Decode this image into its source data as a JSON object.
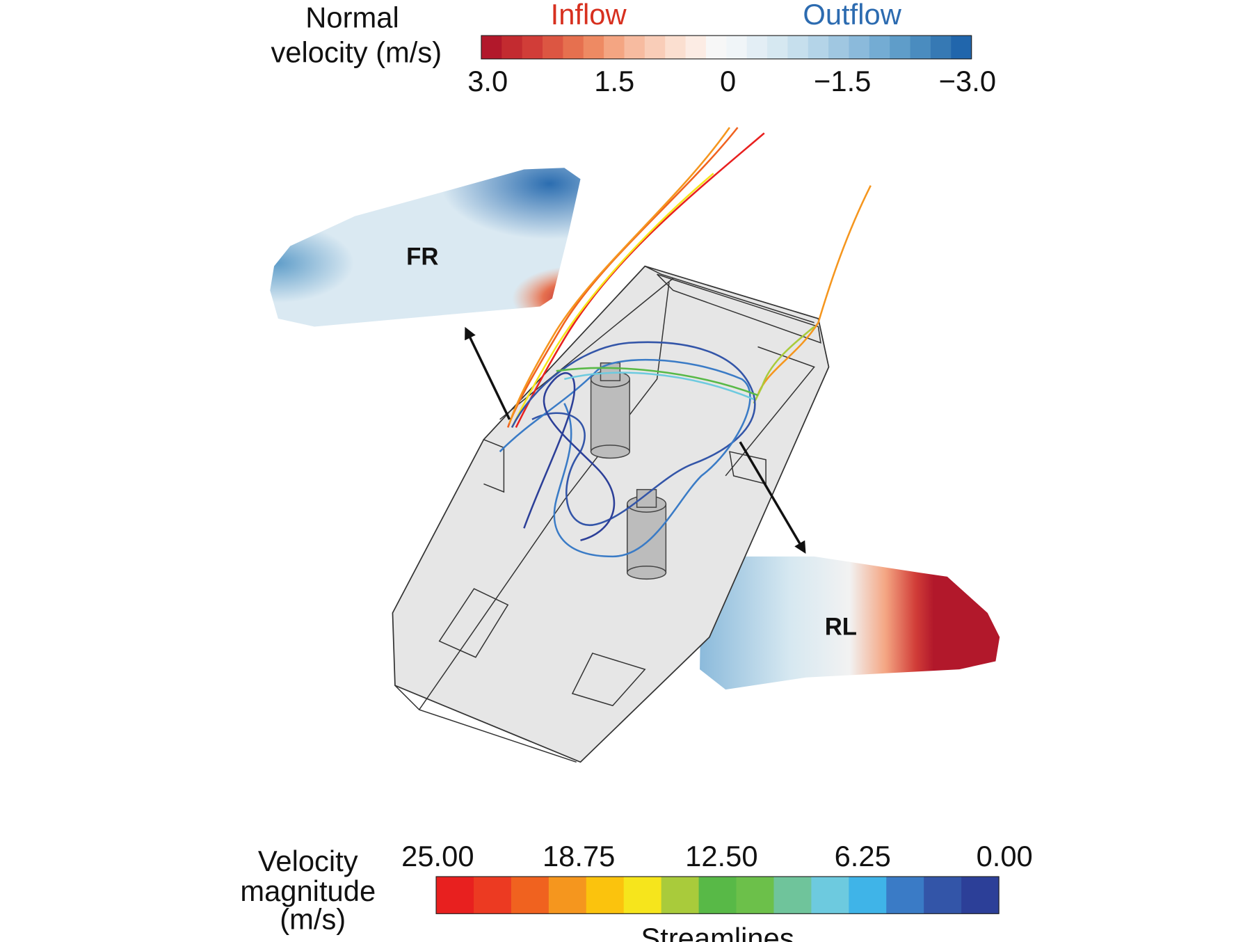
{
  "normal_velocity_legend": {
    "title_lines": [
      "Normal",
      "velocity (m/s)"
    ],
    "inflow_label": "Inflow",
    "outflow_label": "Outflow",
    "tick_labels": [
      "3.0",
      "1.5",
      "0",
      "−1.5",
      "−3.0"
    ],
    "colors": [
      "#b2182b",
      "#c32b30",
      "#d13d38",
      "#dc5642",
      "#e6704f",
      "#ee8a63",
      "#f4a582",
      "#f7bba0",
      "#f9cdb8",
      "#fbdfd0",
      "#fcece4",
      "#f7f7f7",
      "#f0f5f8",
      "#e3eef5",
      "#d6e8f1",
      "#c6dfed",
      "#b4d4e8",
      "#a0c7e1",
      "#8bbadb",
      "#74acd3",
      "#5f9dc9",
      "#4a8cbf",
      "#3679b4",
      "#2166ac"
    ]
  },
  "panels": [
    {
      "label": "FR"
    },
    {
      "label": "RL"
    }
  ],
  "velocity_magnitude_legend": {
    "title_lines": [
      "Velocity",
      "magnitude",
      "(m/s)"
    ],
    "tick_labels": [
      "25.00",
      "18.75",
      "12.50",
      "6.25",
      "0.00"
    ],
    "caption": "Streamlines",
    "colors": [
      "#e8201f",
      "#ec3a22",
      "#f0621f",
      "#f5961e",
      "#fbc30d",
      "#f6e51c",
      "#a9cb3b",
      "#58b947",
      "#6cc04a",
      "#6fc49b",
      "#6dcadf",
      "#3fb4e8",
      "#3a7bc6",
      "#3355a8",
      "#2c3f98"
    ]
  }
}
